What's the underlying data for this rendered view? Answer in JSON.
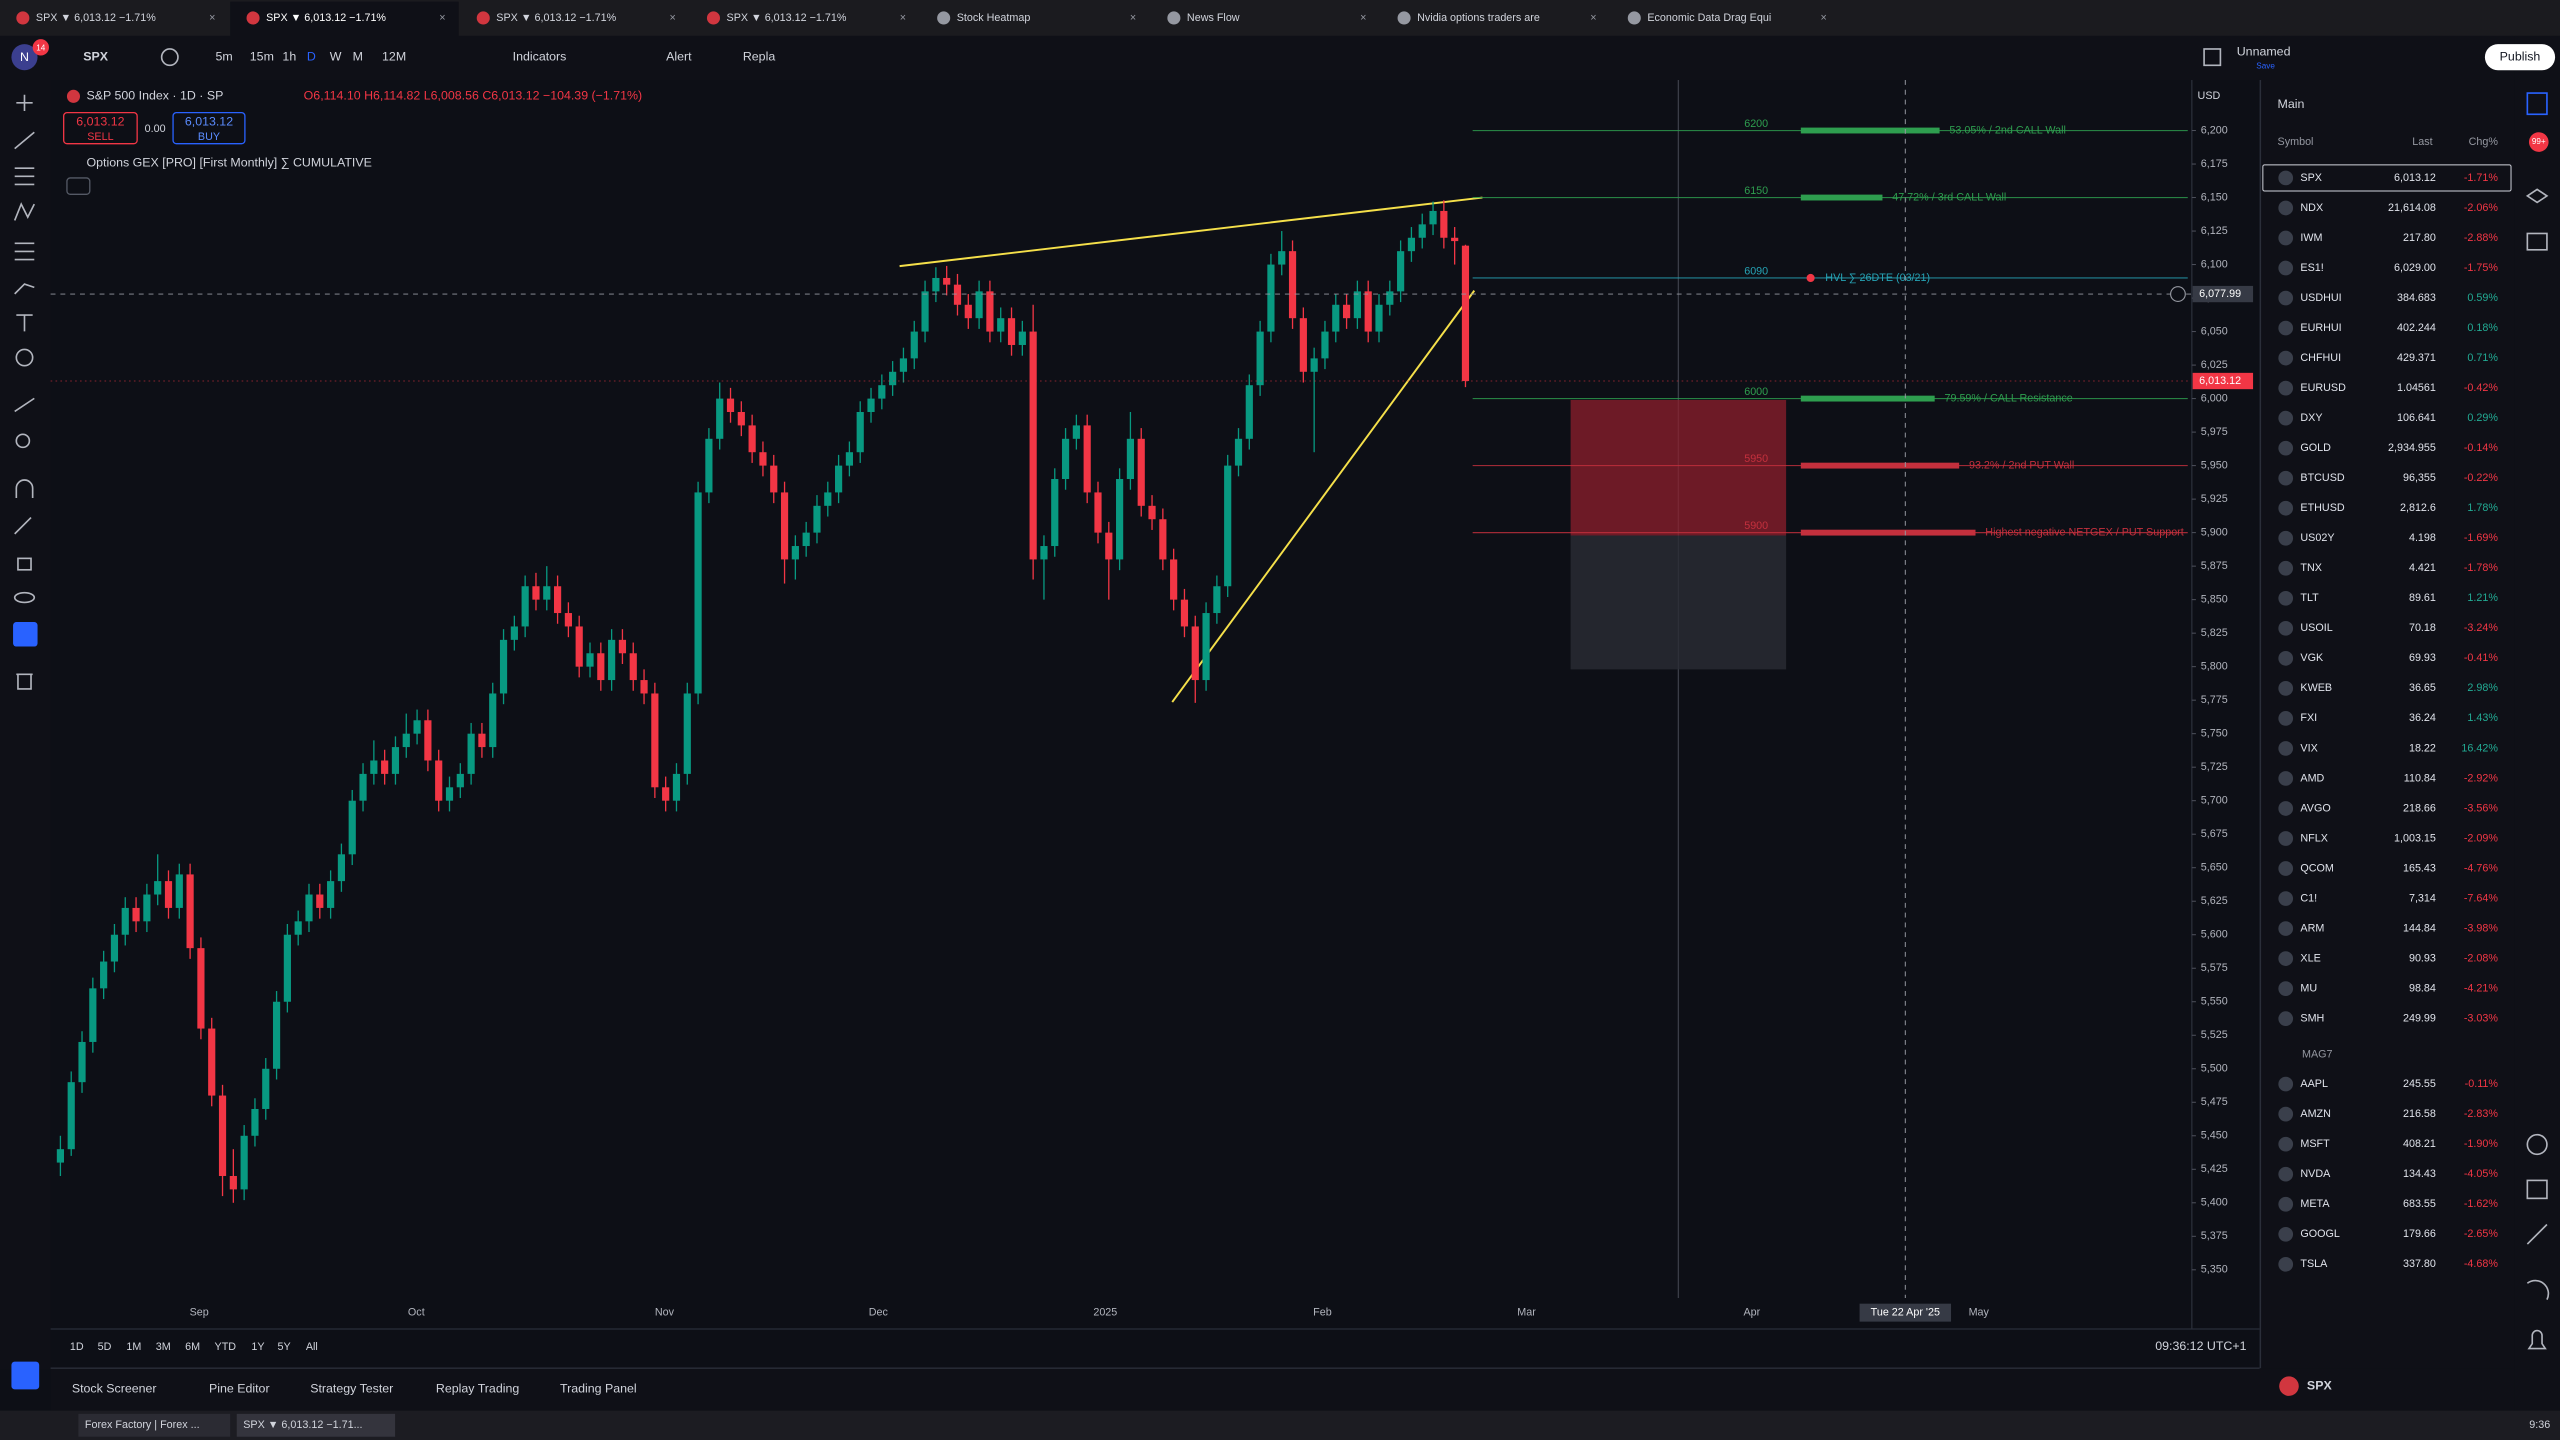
{
  "tabs": [
    "SPX ▼ 6,013.12 −1.71%",
    "SPX ▼ 6,013.12 −1.71%",
    "SPX ▼ 6,013.12 −1.71%",
    "SPX ▼ 6,013.12 −1.71%",
    "Stock Heatmap",
    "News Flow",
    "Nvidia options traders are",
    "Economic Data Drag Equi"
  ],
  "toolbar": {
    "avatar": "N",
    "notifications": "14",
    "symbol": "SPX",
    "intervals": [
      "5m",
      "15m",
      "1h",
      "D",
      "W",
      "M",
      "12M"
    ],
    "indicators": "Indicators",
    "alert": "Alert",
    "replay": "Repla",
    "layout_name": "Unnamed",
    "save": "Save",
    "publish": "Publish"
  },
  "legend": {
    "title": "S&P 500 Index · 1D · SP",
    "ohlc": "O6,114.10 H6,114.82 L6,008.56 C6,013.12 −104.39 (−1.71%)",
    "sell_price": "6,013.12",
    "sell": "SELL",
    "spread": "0.00",
    "buy_price": "6,013.12",
    "buy": "BUY",
    "indicator": "Options GEX [PRO] [First Monthly] ∑ CUMULATIVE"
  },
  "chart_data": {
    "type": "candlestick",
    "currency": "USD",
    "ylim": [
      5329,
      6231
    ],
    "yticks": [
      {
        "value": 5350,
        "label": "5,350"
      },
      {
        "value": 5375,
        "label": "5,375"
      },
      {
        "value": 5400,
        "label": "5,400"
      },
      {
        "value": 5425,
        "label": "5,425"
      },
      {
        "value": 5450,
        "label": "5,450"
      },
      {
        "value": 5475,
        "label": "5,475"
      },
      {
        "value": 5500,
        "label": "5,500"
      },
      {
        "value": 5525,
        "label": "5,525"
      },
      {
        "value": 5550,
        "label": "5,550"
      },
      {
        "value": 5575,
        "label": "5,575"
      },
      {
        "value": 5600,
        "label": "5,600"
      },
      {
        "value": 5625,
        "label": "5,625"
      },
      {
        "value": 5650,
        "label": "5,650"
      },
      {
        "value": 5675,
        "label": "5,675"
      },
      {
        "value": 5700,
        "label": "5,700"
      },
      {
        "value": 5725,
        "label": "5,725"
      },
      {
        "value": 5750,
        "label": "5,750"
      },
      {
        "value": 5775,
        "label": "5,775"
      },
      {
        "value": 5800,
        "label": "5,800"
      },
      {
        "value": 5825,
        "label": "5,825"
      },
      {
        "value": 5850,
        "label": "5,850"
      },
      {
        "value": 5875,
        "label": "5,875"
      },
      {
        "value": 5900,
        "label": "5,900"
      },
      {
        "value": 5925,
        "label": "5,925"
      },
      {
        "value": 5950,
        "label": "5,950"
      },
      {
        "value": 5975,
        "label": "5,975"
      },
      {
        "value": 6000,
        "label": "6,000"
      },
      {
        "value": 6025,
        "label": "6,025"
      },
      {
        "value": 6050,
        "label": "6,050"
      },
      {
        "value": 6075,
        "label": "6,075"
      },
      {
        "value": 6100,
        "label": "6,100"
      },
      {
        "value": 6125,
        "label": "6,125"
      },
      {
        "value": 6150,
        "label": "6,150"
      },
      {
        "value": 6175,
        "label": "6,175"
      },
      {
        "value": 6200,
        "label": "6,200"
      }
    ],
    "up_color": "#089981",
    "down_color": "#f23645",
    "candles": [
      [
        5430,
        5450,
        5420,
        5440
      ],
      [
        5440,
        5498,
        5435,
        5490
      ],
      [
        5490,
        5528,
        5482,
        5520
      ],
      [
        5520,
        5568,
        5512,
        5560
      ],
      [
        5560,
        5588,
        5552,
        5580
      ],
      [
        5580,
        5608,
        5572,
        5600
      ],
      [
        5600,
        5628,
        5592,
        5620
      ],
      [
        5620,
        5628,
        5602,
        5610
      ],
      [
        5610,
        5638,
        5602,
        5630
      ],
      [
        5630,
        5660,
        5622,
        5640
      ],
      [
        5640,
        5648,
        5612,
        5620
      ],
      [
        5620,
        5653,
        5612,
        5645
      ],
      [
        5645,
        5653,
        5582,
        5590
      ],
      [
        5590,
        5598,
        5522,
        5530
      ],
      [
        5530,
        5538,
        5472,
        5480
      ],
      [
        5480,
        5488,
        5405,
        5420
      ],
      [
        5420,
        5440,
        5400,
        5410
      ],
      [
        5410,
        5458,
        5402,
        5450
      ],
      [
        5450,
        5478,
        5442,
        5470
      ],
      [
        5470,
        5508,
        5462,
        5500
      ],
      [
        5500,
        5558,
        5492,
        5550
      ],
      [
        5550,
        5608,
        5542,
        5600
      ],
      [
        5600,
        5618,
        5592,
        5610
      ],
      [
        5610,
        5638,
        5602,
        5630
      ],
      [
        5630,
        5638,
        5612,
        5620
      ],
      [
        5620,
        5648,
        5612,
        5640
      ],
      [
        5640,
        5668,
        5632,
        5660
      ],
      [
        5660,
        5708,
        5652,
        5700
      ],
      [
        5700,
        5728,
        5692,
        5720
      ],
      [
        5720,
        5745,
        5712,
        5730
      ],
      [
        5730,
        5738,
        5712,
        5720
      ],
      [
        5720,
        5748,
        5712,
        5740
      ],
      [
        5740,
        5765,
        5732,
        5750
      ],
      [
        5750,
        5768,
        5742,
        5760
      ],
      [
        5760,
        5768,
        5722,
        5730
      ],
      [
        5730,
        5738,
        5692,
        5700
      ],
      [
        5700,
        5718,
        5692,
        5710
      ],
      [
        5710,
        5728,
        5702,
        5720
      ],
      [
        5720,
        5758,
        5712,
        5750
      ],
      [
        5750,
        5758,
        5732,
        5740
      ],
      [
        5740,
        5788,
        5732,
        5780
      ],
      [
        5780,
        5828,
        5772,
        5820
      ],
      [
        5820,
        5838,
        5812,
        5830
      ],
      [
        5830,
        5868,
        5822,
        5860
      ],
      [
        5860,
        5870,
        5842,
        5850
      ],
      [
        5850,
        5875,
        5842,
        5860
      ],
      [
        5860,
        5868,
        5832,
        5840
      ],
      [
        5840,
        5848,
        5822,
        5830
      ],
      [
        5830,
        5838,
        5792,
        5800
      ],
      [
        5800,
        5818,
        5792,
        5810
      ],
      [
        5810,
        5818,
        5782,
        5790
      ],
      [
        5790,
        5828,
        5782,
        5820
      ],
      [
        5820,
        5828,
        5802,
        5810
      ],
      [
        5810,
        5818,
        5782,
        5790
      ],
      [
        5790,
        5798,
        5772,
        5780
      ],
      [
        5780,
        5788,
        5702,
        5710
      ],
      [
        5710,
        5718,
        5692,
        5700
      ],
      [
        5700,
        5728,
        5692,
        5720
      ],
      [
        5720,
        5788,
        5712,
        5780
      ],
      [
        5780,
        5938,
        5772,
        5930
      ],
      [
        5930,
        5978,
        5922,
        5970
      ],
      [
        5970,
        6012,
        5962,
        6000
      ],
      [
        6000,
        6008,
        5982,
        5990
      ],
      [
        5990,
        5998,
        5972,
        5980
      ],
      [
        5980,
        5988,
        5952,
        5960
      ],
      [
        5960,
        5968,
        5942,
        5950
      ],
      [
        5950,
        5958,
        5922,
        5930
      ],
      [
        5930,
        5938,
        5862,
        5880
      ],
      [
        5880,
        5898,
        5865,
        5890
      ],
      [
        5890,
        5908,
        5882,
        5900
      ],
      [
        5900,
        5928,
        5892,
        5920
      ],
      [
        5920,
        5938,
        5912,
        5930
      ],
      [
        5930,
        5958,
        5922,
        5950
      ],
      [
        5950,
        5968,
        5942,
        5960
      ],
      [
        5960,
        5998,
        5952,
        5990
      ],
      [
        5990,
        6008,
        5982,
        6000
      ],
      [
        6000,
        6018,
        5992,
        6010
      ],
      [
        6010,
        6028,
        6002,
        6020
      ],
      [
        6020,
        6038,
        6012,
        6030
      ],
      [
        6030,
        6058,
        6022,
        6050
      ],
      [
        6050,
        6088,
        6042,
        6080
      ],
      [
        6080,
        6098,
        6072,
        6090
      ],
      [
        6090,
        6099,
        6077,
        6085
      ],
      [
        6085,
        6093,
        6062,
        6070
      ],
      [
        6070,
        6078,
        6052,
        6060
      ],
      [
        6060,
        6088,
        6052,
        6080
      ],
      [
        6080,
        6088,
        6042,
        6050
      ],
      [
        6050,
        6068,
        6042,
        6060
      ],
      [
        6060,
        6068,
        6032,
        6040
      ],
      [
        6040,
        6058,
        6032,
        6050
      ],
      [
        6050,
        6070,
        5865,
        5880
      ],
      [
        5880,
        5898,
        5850,
        5890
      ],
      [
        5890,
        5948,
        5882,
        5940
      ],
      [
        5940,
        5978,
        5932,
        5970
      ],
      [
        5970,
        5988,
        5962,
        5980
      ],
      [
        5980,
        5988,
        5922,
        5930
      ],
      [
        5930,
        5938,
        5892,
        5900
      ],
      [
        5900,
        5908,
        5850,
        5880
      ],
      [
        5880,
        5948,
        5872,
        5940
      ],
      [
        5940,
        5990,
        5932,
        5970
      ],
      [
        5970,
        5978,
        5912,
        5920
      ],
      [
        5920,
        5928,
        5902,
        5910
      ],
      [
        5910,
        5918,
        5872,
        5880
      ],
      [
        5880,
        5888,
        5842,
        5850
      ],
      [
        5850,
        5858,
        5822,
        5830
      ],
      [
        5830,
        5838,
        5773,
        5790
      ],
      [
        5790,
        5848,
        5782,
        5840
      ],
      [
        5840,
        5868,
        5832,
        5860
      ],
      [
        5860,
        5958,
        5852,
        5950
      ],
      [
        5950,
        5978,
        5942,
        5970
      ],
      [
        5970,
        6018,
        5962,
        6010
      ],
      [
        6010,
        6058,
        6002,
        6050
      ],
      [
        6050,
        6108,
        6042,
        6100
      ],
      [
        6100,
        6125,
        6092,
        6110
      ],
      [
        6110,
        6118,
        6052,
        6060
      ],
      [
        6060,
        6068,
        6012,
        6020
      ],
      [
        6020,
        6038,
        5960,
        6030
      ],
      [
        6030,
        6058,
        6022,
        6050
      ],
      [
        6050,
        6078,
        6042,
        6070
      ],
      [
        6070,
        6078,
        6052,
        6060
      ],
      [
        6060,
        6088,
        6052,
        6080
      ],
      [
        6080,
        6088,
        6042,
        6050
      ],
      [
        6050,
        6078,
        6042,
        6070
      ],
      [
        6070,
        6088,
        6062,
        6080
      ],
      [
        6080,
        6118,
        6072,
        6110
      ],
      [
        6110,
        6128,
        6102,
        6120
      ],
      [
        6120,
        6138,
        6112,
        6130
      ],
      [
        6130,
        6147,
        6122,
        6140
      ],
      [
        6140,
        6148,
        6112,
        6120
      ],
      [
        6120,
        6128,
        6100,
        6117.51
      ],
      [
        6114.1,
        6114.82,
        6008.56,
        6013.12
      ]
    ],
    "last_price": {
      "value": 6013.12,
      "label": "6,013.12"
    },
    "crosshair": {
      "value": 6077.99,
      "label": "6,077.99"
    },
    "crosshair_date": "Tue 22 Apr '25",
    "xlabels": [
      "Sep",
      "Oct",
      "Nov",
      "Dec",
      "2025",
      "Feb",
      "Mar",
      "Apr",
      "May"
    ],
    "levels": [
      {
        "value": 6200,
        "text": "53.05% / 2nd CALL Wall",
        "color": "#2e9e4f"
      },
      {
        "value": 6150,
        "text": "47.72% / 3rd CALL Wall",
        "color": "#2e9e4f"
      },
      {
        "value": 6090,
        "text": "HVL ∑ 26DTE (03/21)",
        "color": "#26a3b5"
      },
      {
        "value": 6000,
        "text": "79.59% / CALL Resistance",
        "color": "#2e9e4f"
      },
      {
        "value": 5950,
        "text": "93.2% / 2nd PUT Wall",
        "color": "#c4303d"
      },
      {
        "value": 5900,
        "text": "Highest negative NETGEX / PUT Support",
        "color": "#c4303d"
      }
    ]
  },
  "range_buttons": [
    "1D",
    "5D",
    "1M",
    "3M",
    "6M",
    "YTD",
    "1Y",
    "5Y",
    "All"
  ],
  "clock": "09:36:12 UTC+1",
  "bottom_tabs": [
    "Stock Screener",
    "Pine Editor",
    "Strategy Tester",
    "Replay Trading",
    "Trading Panel"
  ],
  "watchlist": {
    "title": "Main",
    "badge": "99+",
    "columns": [
      "Symbol",
      "Last",
      "Chg%"
    ],
    "rows": [
      {
        "symbol": "SPX",
        "last": "6,013.12",
        "chg": "-1.71%"
      },
      {
        "symbol": "NDX",
        "last": "21,614.08",
        "chg": "-2.06%"
      },
      {
        "symbol": "IWM",
        "last": "217.80",
        "chg": "-2.88%"
      },
      {
        "symbol": "ES1!",
        "last": "6,029.00",
        "chg": "-1.75%"
      },
      {
        "symbol": "USDHUI",
        "last": "384.683",
        "chg": "0.59%"
      },
      {
        "symbol": "EURHUI",
        "last": "402.244",
        "chg": "0.18%"
      },
      {
        "symbol": "CHFHUI",
        "last": "429.371",
        "chg": "0.71%"
      },
      {
        "symbol": "EURUSD",
        "last": "1.04561",
        "chg": "-0.42%"
      },
      {
        "symbol": "DXY",
        "last": "106.641",
        "chg": "0.29%"
      },
      {
        "symbol": "GOLD",
        "last": "2,934.955",
        "chg": "-0.14%"
      },
      {
        "symbol": "BTCUSD",
        "last": "96,355",
        "chg": "-0.22%"
      },
      {
        "symbol": "ETHUSD",
        "last": "2,812.6",
        "chg": "1.78%"
      },
      {
        "symbol": "US02Y",
        "last": "4.198",
        "chg": "-1.69%"
      },
      {
        "symbol": "TNX",
        "last": "4.421",
        "chg": "-1.78%"
      },
      {
        "symbol": "TLT",
        "last": "89.61",
        "chg": "1.21%"
      },
      {
        "symbol": "USOIL",
        "last": "70.18",
        "chg": "-3.24%"
      },
      {
        "symbol": "VGK",
        "last": "69.93",
        "chg": "-0.41%"
      },
      {
        "symbol": "KWEB",
        "last": "36.65",
        "chg": "2.98%"
      },
      {
        "symbol": "FXI",
        "last": "36.24",
        "chg": "1.43%"
      },
      {
        "symbol": "VIX",
        "last": "18.22",
        "chg": "16.42%"
      },
      {
        "symbol": "AMD",
        "last": "110.84",
        "chg": "-2.92%"
      },
      {
        "symbol": "AVGO",
        "last": "218.66",
        "chg": "-3.56%"
      },
      {
        "symbol": "NFLX",
        "last": "1,003.15",
        "chg": "-2.09%"
      },
      {
        "symbol": "QCOM",
        "last": "165.43",
        "chg": "-4.76%"
      },
      {
        "symbol": "C1!",
        "last": "7,314",
        "chg": "-7.64%"
      },
      {
        "symbol": "ARM",
        "last": "144.84",
        "chg": "-3.98%"
      },
      {
        "symbol": "XLE",
        "last": "90.93",
        "chg": "-2.08%"
      },
      {
        "symbol": "MU",
        "last": "98.84",
        "chg": "-4.21%"
      },
      {
        "symbol": "SMH",
        "last": "249.99",
        "chg": "-3.03%"
      }
    ],
    "section": "MAG7",
    "mag7": [
      {
        "symbol": "AAPL",
        "last": "245.55",
        "chg": "-0.11%"
      },
      {
        "symbol": "AMZN",
        "last": "216.58",
        "chg": "-2.83%"
      },
      {
        "symbol": "MSFT",
        "last": "408.21",
        "chg": "-1.90%"
      },
      {
        "symbol": "NVDA",
        "last": "134.43",
        "chg": "-4.05%"
      },
      {
        "symbol": "META",
        "last": "683.55",
        "chg": "-1.62%"
      },
      {
        "symbol": "GOOGL",
        "last": "179.66",
        "chg": "-2.65%"
      },
      {
        "symbol": "TSLA",
        "last": "337.80",
        "chg": "-4.68%"
      }
    ]
  },
  "footer_symbol": "SPX",
  "taskbar": [
    "Forex Factory | Forex ...",
    "SPX ▼ 6,013.12 −1.71..."
  ],
  "time": "9:36"
}
